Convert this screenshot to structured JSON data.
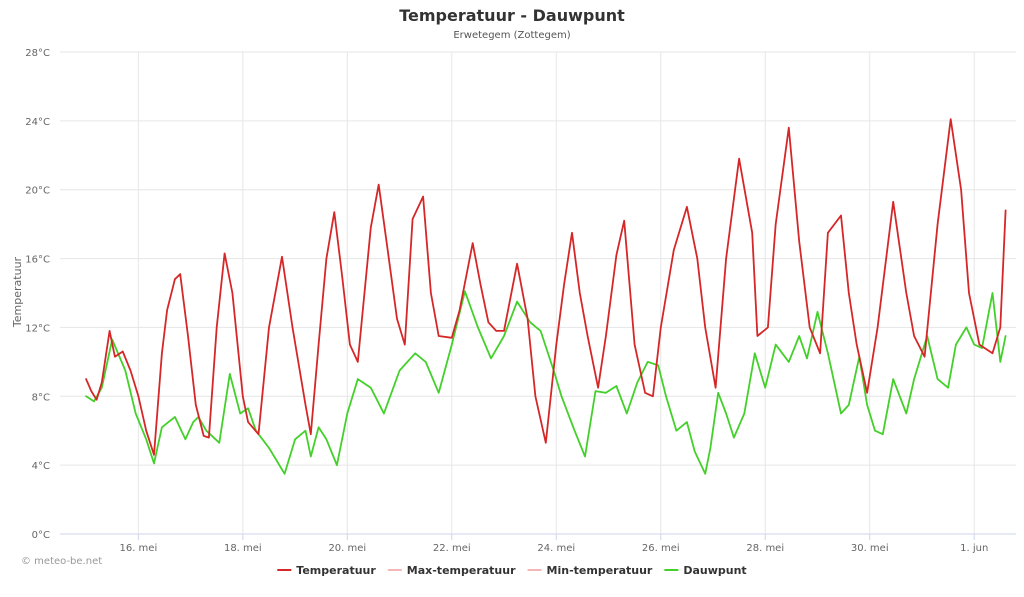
{
  "chart_data": {
    "type": "line",
    "title": "Temperatuur - Dauwpunt",
    "subtitle": "Erwetegem (Zottegem)",
    "ylabel": "Temperatuur",
    "ylim": [
      0,
      28
    ],
    "y_ticks": [
      "0°C",
      "4°C",
      "8°C",
      "12°C",
      "16°C",
      "20°C",
      "24°C",
      "28°C"
    ],
    "y_tick_values": [
      0,
      4,
      8,
      12,
      16,
      20,
      24,
      28
    ],
    "xlim": [
      14.5,
      32.8
    ],
    "x_ticks": [
      "16. mei",
      "18. mei",
      "20. mei",
      "22. mei",
      "24. mei",
      "26. mei",
      "28. mei",
      "30. mei",
      "1. jun"
    ],
    "x_tick_values": [
      16,
      18,
      20,
      22,
      24,
      26,
      28,
      30,
      32
    ],
    "grid": true,
    "legend_position": "bottom-center",
    "credit": "© meteo-be.net",
    "colors": {
      "temperature": "#d62728",
      "max": "#f4b6b6",
      "min": "#f4b6b6",
      "dewpoint": "#44d02a",
      "grid": "#e6e6e6",
      "axis": "#ccd6eb"
    },
    "series": [
      {
        "name": "Temperatuur",
        "x": [
          15.0,
          15.1,
          15.2,
          15.3,
          15.45,
          15.55,
          15.7,
          15.85,
          16.0,
          16.15,
          16.3,
          16.45,
          16.55,
          16.7,
          16.8,
          16.95,
          17.1,
          17.25,
          17.35,
          17.5,
          17.65,
          17.8,
          18.0,
          18.1,
          18.3,
          18.5,
          18.75,
          18.95,
          19.2,
          19.3,
          19.45,
          19.6,
          19.75,
          19.9,
          20.05,
          20.2,
          20.45,
          20.6,
          20.75,
          20.95,
          21.1,
          21.25,
          21.45,
          21.6,
          21.75,
          22.0,
          22.15,
          22.4,
          22.55,
          22.7,
          22.85,
          23.0,
          23.25,
          23.45,
          23.6,
          23.8,
          24.0,
          24.15,
          24.3,
          24.45,
          24.6,
          24.8,
          24.95,
          25.15,
          25.3,
          25.5,
          25.7,
          25.85,
          26.0,
          26.25,
          26.5,
          26.7,
          26.85,
          27.05,
          27.25,
          27.5,
          27.75,
          27.85,
          28.05,
          28.2,
          28.45,
          28.65,
          28.85,
          29.05,
          29.2,
          29.45,
          29.6,
          29.75,
          29.95,
          30.15,
          30.45,
          30.7,
          30.85,
          31.05,
          31.3,
          31.55,
          31.75,
          31.9,
          32.1,
          32.35,
          32.5,
          32.6
        ],
        "values": [
          9.0,
          8.3,
          7.8,
          8.8,
          11.8,
          10.3,
          10.6,
          9.5,
          8.0,
          6.0,
          4.6,
          10.5,
          13.0,
          14.8,
          15.1,
          11.5,
          7.5,
          5.7,
          5.6,
          12.0,
          16.3,
          14.0,
          8.0,
          6.5,
          5.8,
          12.0,
          16.1,
          12.0,
          7.5,
          5.8,
          11.0,
          16.0,
          18.7,
          15.0,
          11.0,
          10.0,
          17.8,
          20.3,
          17.0,
          12.5,
          11.0,
          18.3,
          19.6,
          14.0,
          11.5,
          11.4,
          13.0,
          16.9,
          14.5,
          12.3,
          11.8,
          11.8,
          15.7,
          12.5,
          8.0,
          5.3,
          11.0,
          14.5,
          17.5,
          14.0,
          11.5,
          8.5,
          11.5,
          16.2,
          18.2,
          11.0,
          8.2,
          8.0,
          12.0,
          16.5,
          19.0,
          16.0,
          12.0,
          8.5,
          16.0,
          21.8,
          17.5,
          11.5,
          12.0,
          18.0,
          23.6,
          17.0,
          12.0,
          10.5,
          17.5,
          18.5,
          14.0,
          11.0,
          8.2,
          12.0,
          19.3,
          14.0,
          11.5,
          10.3,
          18.0,
          24.1,
          20.0,
          14.0,
          11.0,
          10.5,
          12.0,
          18.8
        ]
      },
      {
        "name": "Max-temperatuur",
        "x": [],
        "values": []
      },
      {
        "name": "Min-temperatuur",
        "x": [],
        "values": []
      },
      {
        "name": "Dauwpunt",
        "x": [
          15.0,
          15.15,
          15.3,
          15.5,
          15.75,
          15.95,
          16.15,
          16.3,
          16.45,
          16.7,
          16.9,
          17.05,
          17.15,
          17.3,
          17.55,
          17.75,
          17.95,
          18.1,
          18.25,
          18.5,
          18.8,
          19.0,
          19.2,
          19.3,
          19.45,
          19.6,
          19.8,
          20.0,
          20.2,
          20.45,
          20.7,
          21.0,
          21.3,
          21.5,
          21.75,
          22.0,
          22.25,
          22.5,
          22.75,
          23.0,
          23.25,
          23.5,
          23.7,
          23.95,
          24.1,
          24.35,
          24.55,
          24.75,
          24.95,
          25.15,
          25.35,
          25.55,
          25.75,
          25.95,
          26.1,
          26.3,
          26.5,
          26.65,
          26.85,
          26.95,
          27.1,
          27.25,
          27.4,
          27.6,
          27.8,
          28.0,
          28.2,
          28.45,
          28.65,
          28.8,
          29.0,
          29.2,
          29.45,
          29.6,
          29.8,
          29.95,
          30.1,
          30.25,
          30.45,
          30.7,
          30.85,
          31.1,
          31.3,
          31.5,
          31.65,
          31.85,
          32.0,
          32.15,
          32.35,
          32.5,
          32.6
        ],
        "values": [
          8.0,
          7.7,
          8.5,
          11.3,
          9.5,
          7.0,
          5.5,
          4.1,
          6.2,
          6.8,
          5.5,
          6.5,
          6.8,
          6.0,
          5.3,
          9.3,
          7.0,
          7.3,
          6.0,
          5.0,
          3.5,
          5.5,
          6.0,
          4.5,
          6.2,
          5.5,
          4.0,
          7.0,
          9.0,
          8.5,
          7.0,
          9.5,
          10.5,
          10.0,
          8.2,
          11.0,
          14.1,
          12.0,
          10.2,
          11.5,
          13.5,
          12.3,
          11.8,
          9.5,
          8.0,
          6.0,
          4.5,
          8.3,
          8.2,
          8.6,
          7.0,
          8.8,
          10.0,
          9.8,
          8.0,
          6.0,
          6.5,
          4.8,
          3.5,
          5.0,
          8.2,
          7.0,
          5.6,
          7.0,
          10.5,
          8.5,
          11.0,
          10.0,
          11.5,
          10.2,
          12.9,
          10.5,
          7.0,
          7.5,
          10.3,
          7.5,
          6.0,
          5.8,
          9.0,
          7.0,
          9.0,
          11.5,
          9.0,
          8.5,
          11.0,
          12.0,
          11.0,
          10.8,
          14.0,
          10.0,
          11.5
        ]
      }
    ]
  }
}
